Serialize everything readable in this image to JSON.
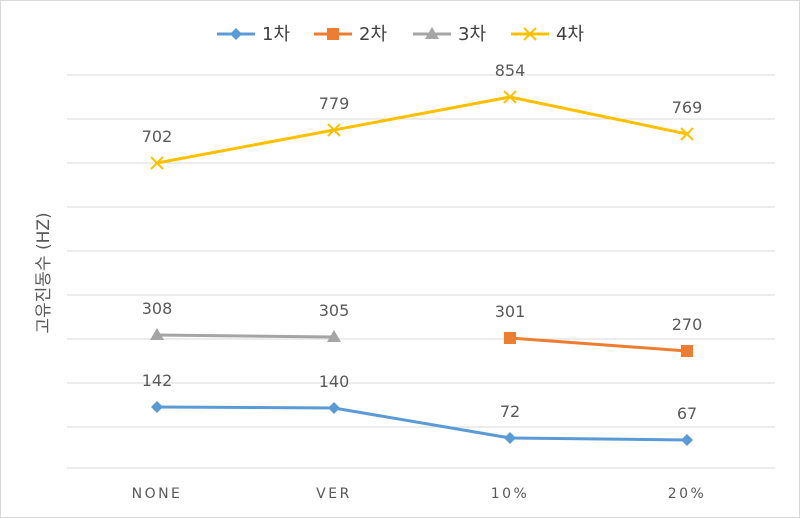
{
  "chart_data": {
    "type": "line",
    "title": "",
    "xlabel": "",
    "ylabel": "고유진동수 (HZ)",
    "categories": [
      "NONE",
      "VER",
      "10%",
      "20%"
    ],
    "gridlines": true,
    "legend_position": "top",
    "series": [
      {
        "name": "1차",
        "color": "#5b9bd5",
        "marker": "diamond",
        "values": [
          142,
          140,
          72,
          67
        ],
        "labels": [
          "142",
          "140",
          "72",
          "67"
        ]
      },
      {
        "name": "2차",
        "color": "#ed7d31",
        "marker": "square",
        "values": [
          null,
          null,
          301,
          270
        ],
        "labels": [
          "",
          "",
          "301",
          "270"
        ]
      },
      {
        "name": "3차",
        "color": "#a5a5a5",
        "marker": "triangle",
        "values": [
          308,
          305,
          null,
          null
        ],
        "labels": [
          "308",
          "305",
          "",
          ""
        ]
      },
      {
        "name": "4차",
        "color": "#ffc000",
        "marker": "x",
        "values": [
          702,
          779,
          854,
          769
        ],
        "labels": [
          "702",
          "779",
          "854",
          "769"
        ]
      }
    ]
  }
}
